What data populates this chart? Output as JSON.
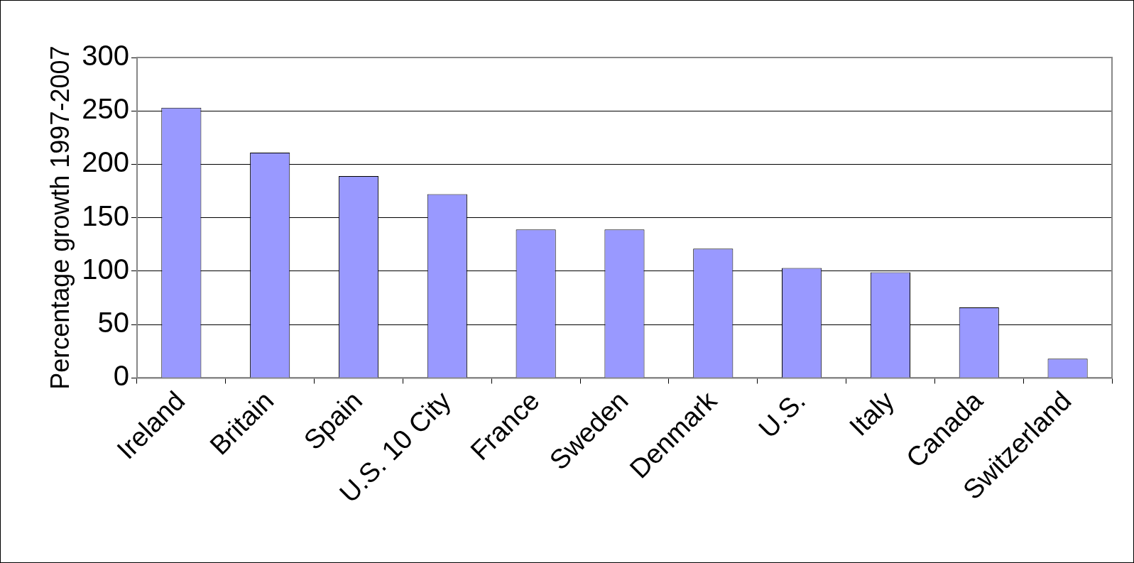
{
  "chart_data": {
    "type": "bar",
    "ylabel": "Percentage growth 1997-2007",
    "categories": [
      "Ireland",
      "Britain",
      "Spain",
      "U.S. 10 City",
      "France",
      "Sweden",
      "Denmark",
      "U.S.",
      "Italy",
      "Canada",
      "Switzerland"
    ],
    "values": [
      253,
      211,
      189,
      172,
      139,
      139,
      121,
      103,
      99,
      66,
      18
    ],
    "color": "#9999ff",
    "ylim": [
      0,
      300
    ],
    "yticks": [
      0,
      50,
      100,
      150,
      200,
      250,
      300
    ],
    "grid": "y",
    "legend": false
  }
}
